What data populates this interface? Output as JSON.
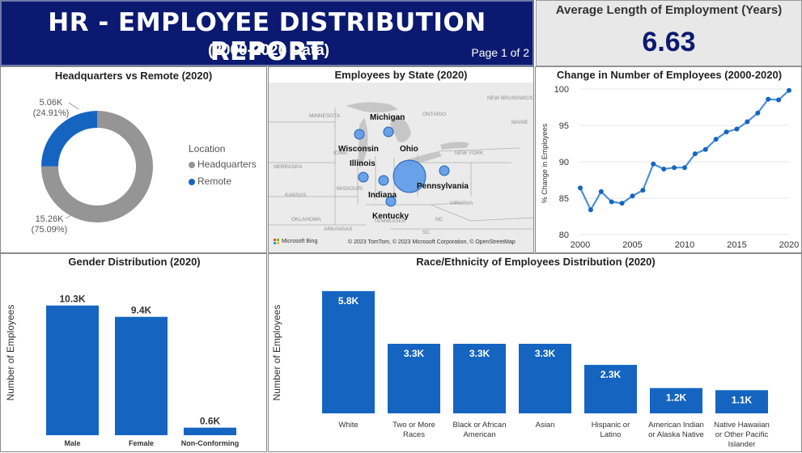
{
  "header": {
    "title": "HR - EMPLOYEE DISTRIBUTION REPORT",
    "subtitle": "(2000-2020 Data)",
    "page": "Page 1 of 2"
  },
  "kpi": {
    "label": "Average Length of Employment (Years)",
    "value": "6.63"
  },
  "colors": {
    "navy": "#0b1a70",
    "blue": "#1565c0",
    "gray": "#959595",
    "line": "#4a90d9"
  },
  "hq_remote": {
    "title": "Headquarters vs Remote (2020)",
    "legend_title": "Location",
    "legend": [
      "Headquarters",
      "Remote"
    ],
    "remote_value": "5.06K",
    "remote_pct": "(24.91%)",
    "hq_value": "15.26K",
    "hq_pct": "(75.09%)"
  },
  "state_map": {
    "title": "Employees by State (2020)",
    "labels": {
      "michigan": "Michigan",
      "wisconsin": "Wisconsin",
      "ohio": "Ohio",
      "illinois": "Illinois",
      "pennsylvania": "Pennsylvania",
      "indiana": "Indiana",
      "kentucky": "Kentucky"
    },
    "background_labels": [
      "MINNESOTA",
      "NEBRASKA",
      "KANSAS",
      "OKLAHOMA",
      "ARKANSAS",
      "IOWA",
      "MISSOURI",
      "TENNESSEE",
      "VIRGINIA",
      "NC",
      "SC",
      "NEW YORK",
      "ONTARIO",
      "MAINE",
      "NEW BRUNSWICK"
    ],
    "attribution": "© 2023 TomTom, © 2023 Microsoft Corporation, © OpenStreetMap",
    "bing": "Microsoft Bing"
  },
  "chart_data": [
    {
      "type": "line",
      "title": "Change in Number of Employees (2000-2020)",
      "xlabel": "",
      "ylabel": "% Change in Employees",
      "x": [
        2000,
        2001,
        2002,
        2003,
        2004,
        2005,
        2006,
        2007,
        2008,
        2009,
        2010,
        2011,
        2012,
        2013,
        2014,
        2015,
        2016,
        2017,
        2018,
        2019,
        2020
      ],
      "values": [
        86.4,
        83.4,
        85.9,
        84.5,
        84.3,
        85.3,
        86.1,
        89.7,
        89.0,
        89.2,
        89.2,
        91.1,
        91.7,
        93.1,
        94.1,
        94.5,
        95.5,
        96.7,
        98.6,
        98.5,
        99.8
      ],
      "xticks": [
        "2000",
        "2005",
        "2010",
        "2015",
        "2020"
      ],
      "yticks": [
        "80",
        "85",
        "90",
        "95",
        "100"
      ],
      "ylim": [
        80,
        100
      ],
      "xlim": [
        2000,
        2020
      ]
    },
    {
      "type": "bar",
      "title": "Gender Distribution (2020)",
      "ylabel": "Number of Employees",
      "categories": [
        "Male",
        "Female",
        "Non-Conforming"
      ],
      "values": [
        10.3,
        9.4,
        0.6
      ],
      "labels": [
        "10.3K",
        "9.4K",
        "0.6K"
      ],
      "ylim": [
        0,
        11.5
      ]
    },
    {
      "type": "bar",
      "title": "Race/Ethnicity of Employees Distribution (2020)",
      "ylabel": "Number of Employees",
      "categories": [
        [
          "White"
        ],
        [
          "Two or More",
          "Races"
        ],
        [
          "Black or African",
          "American"
        ],
        [
          "Asian"
        ],
        [
          "Hispanic or",
          "Latino"
        ],
        [
          "American Indian",
          "or Alaska Native"
        ],
        [
          "Native Hawaiian",
          "or Other Pacific",
          "Islander"
        ]
      ],
      "values": [
        5.8,
        3.3,
        3.3,
        3.3,
        2.3,
        1.2,
        1.1
      ],
      "labels": [
        "5.8K",
        "3.3K",
        "3.3K",
        "3.3K",
        "2.3K",
        "1.2K",
        "1.1K"
      ],
      "ylim": [
        0,
        6.6
      ]
    },
    {
      "type": "pie",
      "title": "Headquarters vs Remote (2020)",
      "categories": [
        "Headquarters",
        "Remote"
      ],
      "values": [
        15.26,
        5.06
      ],
      "percent": [
        75.09,
        24.91
      ]
    }
  ]
}
